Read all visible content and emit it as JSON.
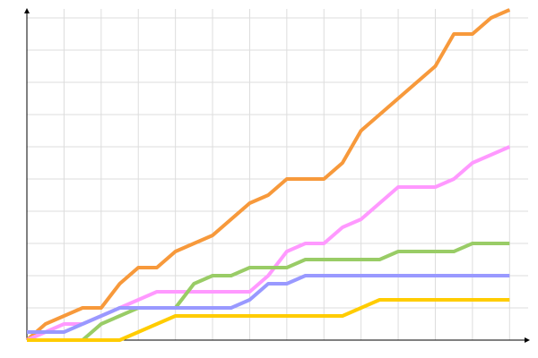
{
  "chart_data": {
    "type": "line",
    "x": [
      0,
      1,
      2,
      3,
      4,
      5,
      6,
      7,
      8,
      9,
      10,
      11,
      12,
      13,
      14,
      15,
      16,
      17,
      18,
      19,
      20,
      21,
      22,
      23,
      24,
      25,
      26
    ],
    "xlim": [
      0,
      27
    ],
    "xticks": [
      2,
      4,
      6,
      8,
      10,
      12,
      14,
      16,
      18,
      20,
      22,
      24,
      26
    ],
    "ylim": [
      0,
      10.5
    ],
    "yticks": [
      1,
      2,
      3,
      4,
      5,
      6,
      7,
      8,
      9,
      10
    ],
    "grid": true,
    "series": [
      {
        "color": "#f7993b",
        "values": [
          0,
          0.5,
          0.75,
          1,
          1,
          1.75,
          2.25,
          2.25,
          2.75,
          3,
          3.25,
          3.75,
          4.25,
          4.5,
          5,
          5,
          5,
          5.5,
          6.5,
          7,
          7.5,
          8,
          8.5,
          9.5,
          9.5,
          10,
          10.25
        ]
      },
      {
        "color": "#ff99ff",
        "values": [
          0,
          0.25,
          0.5,
          0.5,
          0.75,
          1,
          1.25,
          1.5,
          1.5,
          1.5,
          1.5,
          1.5,
          1.5,
          2,
          2.75,
          3,
          3,
          3.5,
          3.75,
          4.25,
          4.75,
          4.75,
          4.75,
          5,
          5.5,
          5.75,
          6
        ]
      },
      {
        "color": "#99cc66",
        "values": [
          0,
          0,
          0,
          0,
          0.5,
          0.75,
          1,
          1,
          1,
          1.75,
          2,
          2,
          2.25,
          2.25,
          2.25,
          2.5,
          2.5,
          2.5,
          2.5,
          2.5,
          2.75,
          2.75,
          2.75,
          2.75,
          3,
          3,
          3
        ]
      },
      {
        "color": "#9999ff",
        "values": [
          0.25,
          0.25,
          0.25,
          0.5,
          0.75,
          1,
          1,
          1,
          1,
          1,
          1,
          1,
          1.25,
          1.75,
          1.75,
          2,
          2,
          2,
          2,
          2,
          2,
          2,
          2,
          2,
          2,
          2,
          2
        ]
      },
      {
        "color": "#ffcc00",
        "values": [
          0,
          0,
          0,
          0,
          0,
          0,
          0.25,
          0.5,
          0.75,
          0.75,
          0.75,
          0.75,
          0.75,
          0.75,
          0.75,
          0.75,
          0.75,
          0.75,
          1,
          1.25,
          1.25,
          1.25,
          1.25,
          1.25,
          1.25,
          1.25,
          1.25
        ]
      }
    ]
  }
}
